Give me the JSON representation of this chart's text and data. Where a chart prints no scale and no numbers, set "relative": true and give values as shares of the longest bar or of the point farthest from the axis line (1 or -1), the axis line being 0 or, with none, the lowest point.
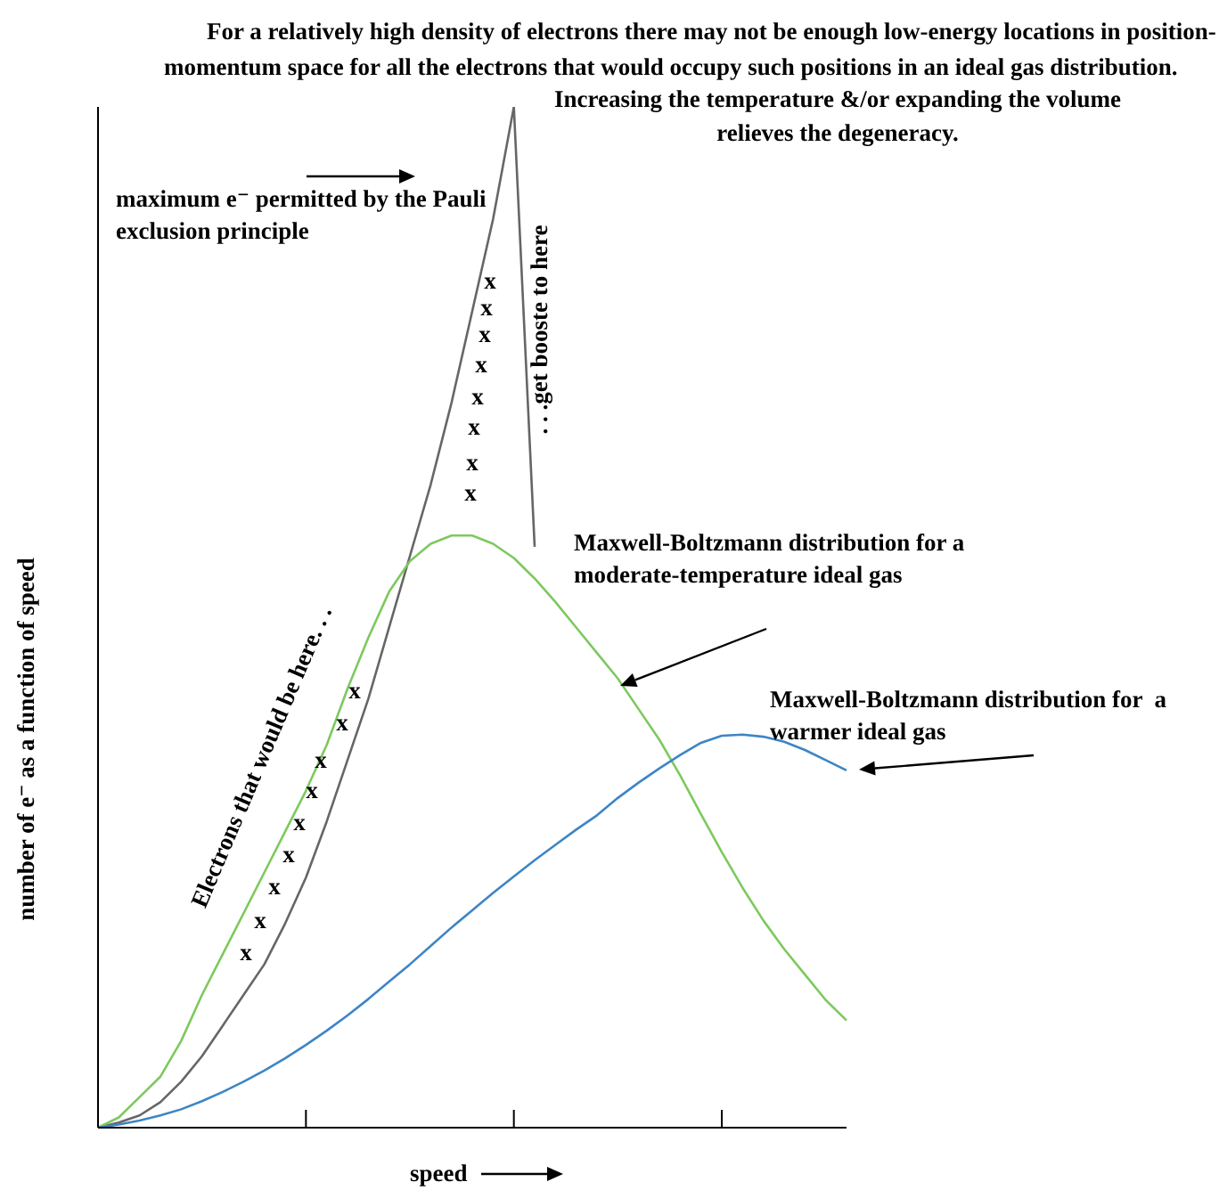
{
  "chart_data": {
    "type": "line",
    "relative": true,
    "xlabel": "speed",
    "ylabel": "number of e⁻ as a function of speed",
    "grid": false,
    "marker": "none",
    "line_style": "solid",
    "categories": [
      null,
      null,
      null,
      null,
      null,
      null,
      null,
      null,
      null,
      null,
      null,
      null,
      null,
      null,
      null,
      null,
      null,
      null,
      null,
      null,
      null,
      null,
      null,
      null,
      null,
      null,
      null,
      null,
      null,
      null,
      null,
      null,
      null,
      null,
      null,
      null,
      null
    ],
    "series": [
      {
        "color": "#666666",
        "values": [
          0,
          0.005,
          0.012,
          0.025,
          0.045,
          0.07,
          0.1,
          0.13,
          0.16,
          0.2,
          0.245,
          0.3,
          0.36,
          0.42,
          0.49,
          0.56,
          0.63,
          0.71,
          0.8,
          0.89,
          1,
          0.569,
          null,
          null,
          null,
          null,
          null,
          null,
          null,
          null,
          null,
          null,
          null,
          null,
          null,
          null,
          null
        ]
      },
      {
        "color": "#7dc95e",
        "values": [
          0,
          0.01,
          0.03,
          0.05,
          0.085,
          0.13,
          0.17,
          0.21,
          0.25,
          0.29,
          0.33,
          0.375,
          0.43,
          0.48,
          0.525,
          0.555,
          0.572,
          0.58,
          0.58,
          0.572,
          0.558,
          0.538,
          0.515,
          0.49,
          0.465,
          0.44,
          0.41,
          0.38,
          0.345,
          0.307,
          0.27,
          0.235,
          0.203,
          0.175,
          0.15,
          0.125,
          0.105
        ]
      },
      {
        "color": "#3d85c6",
        "values": [
          0,
          0.003,
          0.007,
          0.012,
          0.018,
          0.026,
          0.035,
          0.045,
          0.056,
          0.068,
          0.081,
          0.095,
          0.11,
          0.126,
          0.143,
          0.16,
          0.178,
          0.196,
          0.213,
          0.23,
          0.246,
          0.262,
          0.277,
          0.292,
          0.306,
          0.323,
          0.338,
          0.352,
          0.365,
          0.377,
          0.384,
          0.385,
          0.383,
          0.378,
          0.37,
          0.36,
          0.35
        ]
      }
    ],
    "annotations": [
      "For a relatively high density of electrons there may not be enough low-energy locations in position-momentum space for all the electrons that would occupy such positions in an ideal gas distribution.",
      "Increasing the temperature &/or expanding the volume relieves the degeneracy.",
      "maximum e⁻ permitted by the Pauli exclusion principle",
      "Electrons that would be here. . .",
      ". . .get booste to here",
      "Maxwell-Boltzmann distribution for a moderate-temperature ideal gas",
      "Maxwell-Boltzmann distribution for  a warmer ideal gas",
      "x",
      "x",
      "x",
      "x",
      "x",
      "x",
      "x",
      "x",
      "x",
      "x",
      "x",
      "x",
      "x",
      "x",
      "x",
      "x",
      "x"
    ]
  }
}
